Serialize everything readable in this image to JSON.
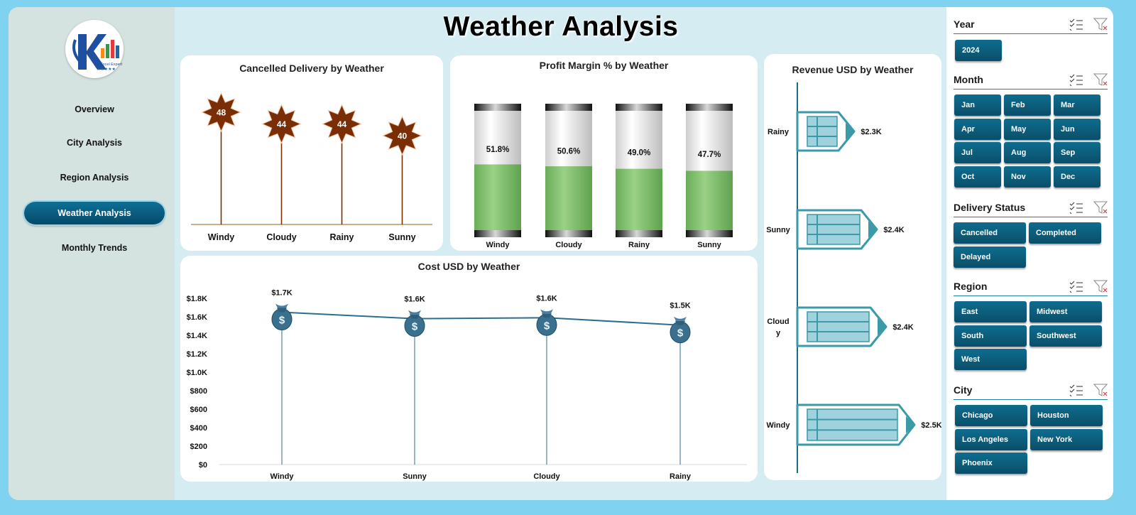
{
  "title": "Weather Analysis",
  "sidebar": {
    "logo_text": "An Excel Expert",
    "items": [
      {
        "label": "Overview",
        "active": false
      },
      {
        "label": "City Analysis",
        "active": false
      },
      {
        "label": "Region Analysis",
        "active": false
      },
      {
        "label": "Weather Analysis",
        "active": true
      },
      {
        "label": "Monthly Trends",
        "active": false
      }
    ]
  },
  "colors": {
    "accent": "#0a5a7a",
    "star": "#7a2e05",
    "bar_fill": "#7fc06a",
    "revenue": "#3a9aa8",
    "cost_line": "#2b6f8f"
  },
  "chart_data": [
    {
      "type": "bar",
      "title": "Cancelled Delivery by Weather",
      "categories": [
        "Windy",
        "Cloudy",
        "Rainy",
        "Sunny"
      ],
      "values": [
        48,
        44,
        44,
        40
      ],
      "ylim": [
        0,
        60
      ]
    },
    {
      "type": "bar",
      "title": "Profit Margin % by Weather",
      "categories": [
        "Windy",
        "Cloudy",
        "Rainy",
        "Sunny"
      ],
      "values": [
        51.8,
        50.6,
        49.0,
        47.7
      ],
      "labels": [
        "51.8%",
        "50.6%",
        "49.0%",
        "47.7%"
      ],
      "ylim": [
        0,
        100
      ]
    },
    {
      "type": "bar",
      "title": "Revenue USD by Weather",
      "orientation": "horizontal",
      "categories": [
        "Rainy",
        "Sunny",
        "Cloudy",
        "Windy"
      ],
      "category_display": [
        "Rainy",
        "Sunny",
        "Cloud\ny",
        "Windy"
      ],
      "values": [
        2300,
        2400,
        2400,
        2500
      ],
      "labels": [
        "$2.3K",
        "$2.4K",
        "$2.4K",
        "$2.5K"
      ]
    },
    {
      "type": "line",
      "title": "Cost USD by Weather",
      "categories": [
        "Windy",
        "Sunny",
        "Cloudy",
        "Rainy"
      ],
      "values": [
        1650,
        1580,
        1590,
        1510
      ],
      "labels": [
        "$1.7K",
        "$1.6K",
        "$1.6K",
        "$1.5K"
      ],
      "ylim": [
        0,
        1800
      ],
      "yticks": [
        "$0",
        "$200",
        "$400",
        "$600",
        "$800",
        "$1.0K",
        "$1.2K",
        "$1.4K",
        "$1.6K",
        "$1.8K"
      ]
    }
  ],
  "slicers": [
    {
      "title": "Year",
      "items": [
        "2024"
      ]
    },
    {
      "title": "Month",
      "items": [
        "Jan",
        "Feb",
        "Mar",
        "Apr",
        "May",
        "Jun",
        "Jul",
        "Aug",
        "Sep",
        "Oct",
        "Nov",
        "Dec"
      ]
    },
    {
      "title": "Delivery Status",
      "items": [
        "Cancelled",
        "Completed",
        "Delayed"
      ]
    },
    {
      "title": "Region",
      "items": [
        "East",
        "Midwest",
        "South",
        "Southwest",
        "West"
      ]
    },
    {
      "title": "City",
      "items": [
        "Chicago",
        "Houston",
        "Los Angeles",
        "New York",
        "Phoenix"
      ]
    }
  ]
}
